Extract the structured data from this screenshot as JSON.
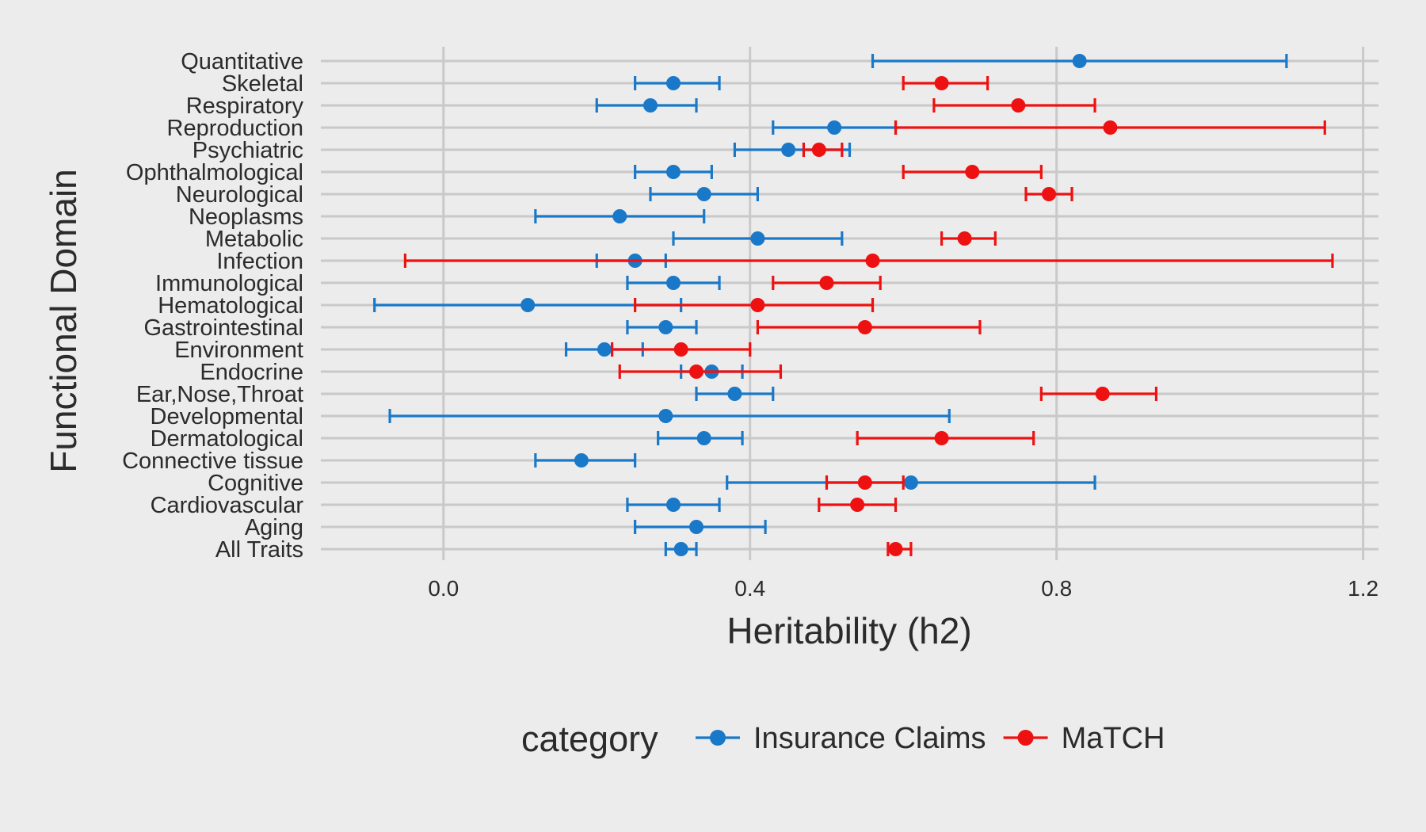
{
  "chart_data": {
    "type": "scatter",
    "subtype": "point-with-error-bars",
    "xlabel": "Heritability (h2)",
    "ylabel": "Functional Domain",
    "xlim": [
      -0.16,
      1.22
    ],
    "xticks": [
      0.0,
      0.4,
      0.8,
      1.2
    ],
    "xtick_labels": [
      "0.0",
      "0.4",
      "0.8",
      "1.2"
    ],
    "grid": true,
    "legend": {
      "title": "category",
      "position": "bottom"
    },
    "categories": [
      "Quantitative",
      "Skeletal",
      "Respiratory",
      "Reproduction",
      "Psychiatric",
      "Ophthalmological",
      "Neurological",
      "Neoplasms",
      "Metabolic",
      "Infection",
      "Immunological",
      "Hematological",
      "Gastrointestinal",
      "Environment",
      "Endocrine",
      "Ear,Nose,Throat",
      "Developmental",
      "Dermatological",
      "Connective tissue",
      "Cognitive",
      "Cardiovascular",
      "Aging",
      "All Traits"
    ],
    "series": [
      {
        "name": "Insurance Claims",
        "color": "#1a78c8",
        "points": [
          {
            "category": "Quantitative",
            "x": 0.83,
            "low": 0.56,
            "high": 1.1
          },
          {
            "category": "Skeletal",
            "x": 0.3,
            "low": 0.25,
            "high": 0.36
          },
          {
            "category": "Respiratory",
            "x": 0.27,
            "low": 0.2,
            "high": 0.33
          },
          {
            "category": "Reproduction",
            "x": 0.51,
            "low": 0.43,
            "high": 0.59
          },
          {
            "category": "Psychiatric",
            "x": 0.45,
            "low": 0.38,
            "high": 0.53
          },
          {
            "category": "Ophthalmological",
            "x": 0.3,
            "low": 0.25,
            "high": 0.35
          },
          {
            "category": "Neurological",
            "x": 0.34,
            "low": 0.27,
            "high": 0.41
          },
          {
            "category": "Neoplasms",
            "x": 0.23,
            "low": 0.12,
            "high": 0.34
          },
          {
            "category": "Metabolic",
            "x": 0.41,
            "low": 0.3,
            "high": 0.52
          },
          {
            "category": "Infection",
            "x": 0.25,
            "low": 0.2,
            "high": 0.29
          },
          {
            "category": "Immunological",
            "x": 0.3,
            "low": 0.24,
            "high": 0.36
          },
          {
            "category": "Hematological",
            "x": 0.11,
            "low": -0.09,
            "high": 0.31
          },
          {
            "category": "Gastrointestinal",
            "x": 0.29,
            "low": 0.24,
            "high": 0.33
          },
          {
            "category": "Environment",
            "x": 0.21,
            "low": 0.16,
            "high": 0.26
          },
          {
            "category": "Endocrine",
            "x": 0.35,
            "low": 0.31,
            "high": 0.39
          },
          {
            "category": "Ear,Nose,Throat",
            "x": 0.38,
            "low": 0.33,
            "high": 0.43
          },
          {
            "category": "Developmental",
            "x": 0.29,
            "low": -0.07,
            "high": 0.66
          },
          {
            "category": "Dermatological",
            "x": 0.34,
            "low": 0.28,
            "high": 0.39
          },
          {
            "category": "Connective tissue",
            "x": 0.18,
            "low": 0.12,
            "high": 0.25
          },
          {
            "category": "Cognitive",
            "x": 0.61,
            "low": 0.37,
            "high": 0.85
          },
          {
            "category": "Cardiovascular",
            "x": 0.3,
            "low": 0.24,
            "high": 0.36
          },
          {
            "category": "Aging",
            "x": 0.33,
            "low": 0.25,
            "high": 0.42
          },
          {
            "category": "All Traits",
            "x": 0.31,
            "low": 0.29,
            "high": 0.33
          }
        ]
      },
      {
        "name": "MaTCH",
        "color": "#ee1111",
        "points": [
          {
            "category": "Skeletal",
            "x": 0.65,
            "low": 0.6,
            "high": 0.71
          },
          {
            "category": "Respiratory",
            "x": 0.75,
            "low": 0.64,
            "high": 0.85
          },
          {
            "category": "Reproduction",
            "x": 0.87,
            "low": 0.59,
            "high": 1.15
          },
          {
            "category": "Psychiatric",
            "x": 0.49,
            "low": 0.47,
            "high": 0.52
          },
          {
            "category": "Ophthalmological",
            "x": 0.69,
            "low": 0.6,
            "high": 0.78
          },
          {
            "category": "Neurological",
            "x": 0.79,
            "low": 0.76,
            "high": 0.82
          },
          {
            "category": "Metabolic",
            "x": 0.68,
            "low": 0.65,
            "high": 0.72
          },
          {
            "category": "Infection",
            "x": 0.56,
            "low": -0.05,
            "high": 1.16
          },
          {
            "category": "Immunological",
            "x": 0.5,
            "low": 0.43,
            "high": 0.57
          },
          {
            "category": "Hematological",
            "x": 0.41,
            "low": 0.25,
            "high": 0.56
          },
          {
            "category": "Gastrointestinal",
            "x": 0.55,
            "low": 0.41,
            "high": 0.7
          },
          {
            "category": "Environment",
            "x": 0.31,
            "low": 0.22,
            "high": 0.4
          },
          {
            "category": "Endocrine",
            "x": 0.33,
            "low": 0.23,
            "high": 0.44
          },
          {
            "category": "Ear,Nose,Throat",
            "x": 0.86,
            "low": 0.78,
            "high": 0.93
          },
          {
            "category": "Dermatological",
            "x": 0.65,
            "low": 0.54,
            "high": 0.77
          },
          {
            "category": "Cognitive",
            "x": 0.55,
            "low": 0.5,
            "high": 0.6
          },
          {
            "category": "Cardiovascular",
            "x": 0.54,
            "low": 0.49,
            "high": 0.59
          },
          {
            "category": "All Traits",
            "x": 0.59,
            "low": 0.58,
            "high": 0.61
          }
        ]
      }
    ]
  }
}
